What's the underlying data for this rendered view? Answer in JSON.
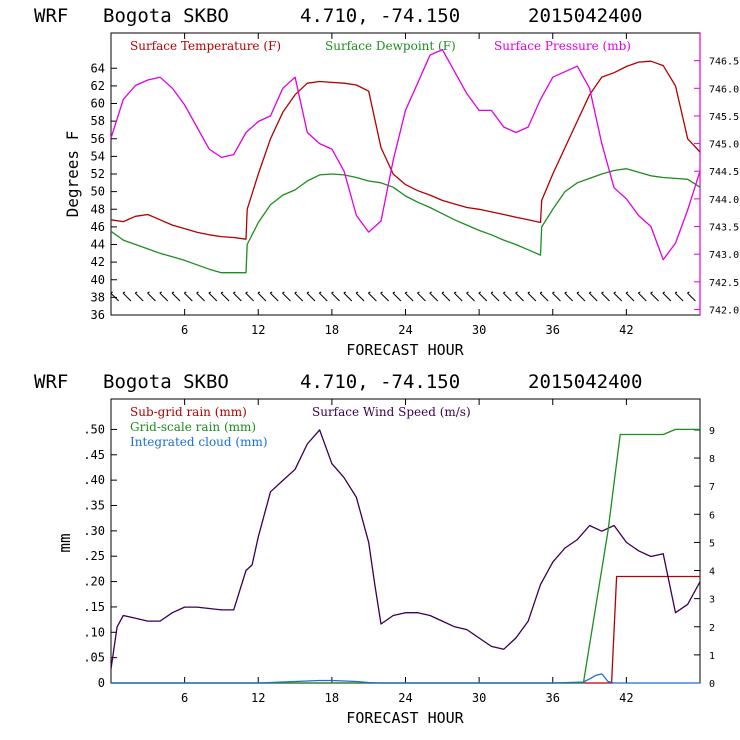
{
  "top_panel": {
    "header": {
      "model": "WRF",
      "station": "Bogota SKBO",
      "coords": "4.710, -74.150",
      "run": "2015042400"
    },
    "xlabel": "FORECAST HOUR",
    "ylabel": "Degrees F",
    "legend": [
      {
        "label": "Surface Temperature (F)",
        "color": "#b30000"
      },
      {
        "label": "Surface Dewpoint (F)",
        "color": "#1e8c1e"
      },
      {
        "label": "Surface Pressure (mb)",
        "color": "#e000e0"
      }
    ]
  },
  "bottom_panel": {
    "header": {
      "model": "WRF",
      "station": "Bogota SKBO",
      "coords": "4.710, -74.150",
      "run": "2015042400"
    },
    "xlabel": "FORECAST HOUR",
    "ylabel": "mm",
    "legend": [
      {
        "label": "Sub-grid rain (mm)",
        "color": "#b30000"
      },
      {
        "label": "Surface Wind Speed (m/s)",
        "color": "#3a0050"
      },
      {
        "label": "Grid-scale rain (mm)",
        "color": "#1e8c1e"
      },
      {
        "label": "Integrated cloud (mm)",
        "color": "#1a6ed8"
      }
    ]
  },
  "chart_data": [
    {
      "type": "line",
      "xlim": [
        0,
        48
      ],
      "xticks": [
        6,
        12,
        18,
        24,
        30,
        36,
        42
      ],
      "ylim": [
        36,
        68
      ],
      "yticks": [
        36,
        38,
        40,
        42,
        44,
        46,
        48,
        50,
        52,
        54,
        56,
        58,
        60,
        62,
        64
      ],
      "y2lim": [
        741.9,
        747.0
      ],
      "y2ticks": [
        "742.0",
        "742.5",
        "743.0",
        "743.5",
        "744.0",
        "744.5",
        "745.0",
        "745.5",
        "746.0",
        "746.5"
      ],
      "series": [
        {
          "name": "Surface Temperature (F)",
          "axis": "left",
          "color": "#b30000",
          "x": [
            0,
            1,
            2,
            3,
            4,
            5,
            6,
            7,
            8,
            9,
            10,
            11,
            11.1,
            12,
            13,
            14,
            15,
            16,
            17,
            18,
            19,
            20,
            21,
            22,
            23,
            24,
            25,
            26,
            27,
            28,
            29,
            30,
            31,
            32,
            33,
            34,
            35,
            35.1,
            36,
            37,
            38,
            39,
            40,
            41,
            42,
            43,
            44,
            45,
            46,
            47,
            48
          ],
          "y": [
            46.8,
            46.6,
            47.2,
            47.4,
            46.8,
            46.2,
            45.8,
            45.4,
            45.1,
            44.9,
            44.8,
            44.6,
            48,
            52,
            56,
            59,
            61,
            62.3,
            62.5,
            62.4,
            62.3,
            62.1,
            61.4,
            55,
            52,
            50.8,
            50.1,
            49.6,
            49,
            48.6,
            48.2,
            48,
            47.7,
            47.4,
            47.1,
            46.8,
            46.5,
            49,
            52,
            55,
            58,
            61,
            63,
            63.5,
            64.2,
            64.7,
            64.8,
            64.3,
            62,
            56,
            54.5
          ]
        },
        {
          "name": "Surface Dewpoint (F)",
          "axis": "left",
          "color": "#1e8c1e",
          "x": [
            0,
            1,
            2,
            3,
            4,
            5,
            6,
            7,
            8,
            9,
            10,
            11,
            11.1,
            12,
            13,
            14,
            15,
            16,
            17,
            18,
            19,
            20,
            21,
            22,
            23,
            24,
            25,
            26,
            27,
            28,
            29,
            30,
            31,
            32,
            33,
            34,
            35,
            35.1,
            36,
            37,
            38,
            39,
            40,
            41,
            42,
            43,
            44,
            45,
            46,
            47,
            48
          ],
          "y": [
            45.5,
            44.5,
            44,
            43.5,
            43,
            42.6,
            42.2,
            41.7,
            41.2,
            40.8,
            40.8,
            40.8,
            44,
            46.5,
            48.5,
            49.6,
            50.2,
            51.2,
            51.9,
            52,
            51.9,
            51.6,
            51.2,
            51,
            50.5,
            49.5,
            48.8,
            48.2,
            47.5,
            46.8,
            46.2,
            45.6,
            45.1,
            44.5,
            44,
            43.4,
            42.8,
            46,
            48,
            50,
            51,
            51.5,
            52,
            52.4,
            52.6,
            52.2,
            51.8,
            51.6,
            51.5,
            51.4,
            50.5
          ]
        },
        {
          "name": "Surface Pressure (mb)",
          "axis": "right",
          "color": "#e000e0",
          "x": [
            0,
            1,
            2,
            3,
            4,
            5,
            6,
            7,
            8,
            9,
            10,
            11,
            12,
            13,
            14,
            15,
            16,
            17,
            18,
            19,
            20,
            21,
            22,
            23,
            24,
            25,
            26,
            27,
            28,
            29,
            30,
            31,
            32,
            33,
            34,
            35,
            36,
            37,
            38,
            39,
            40,
            41,
            42,
            43,
            44,
            45,
            46,
            47,
            48
          ],
          "y": [
            745.1,
            745.8,
            746.05,
            746.15,
            746.2,
            746.0,
            745.7,
            745.3,
            744.9,
            744.75,
            744.8,
            745.2,
            745.4,
            745.5,
            746.0,
            746.2,
            745.2,
            745.0,
            744.9,
            744.5,
            743.7,
            743.4,
            743.6,
            744.7,
            745.6,
            746.1,
            746.6,
            746.7,
            746.3,
            745.9,
            745.6,
            745.6,
            745.3,
            745.2,
            745.3,
            745.8,
            746.2,
            746.3,
            746.4,
            746.0,
            745.0,
            744.2,
            744.0,
            743.7,
            743.5,
            742.9,
            743.2,
            743.8,
            744.5
          ]
        }
      ],
      "wind_barbs": true,
      "grid": false
    },
    {
      "type": "line",
      "xlim": [
        0,
        48
      ],
      "xticks": [
        6,
        12,
        18,
        24,
        30,
        36,
        42
      ],
      "ylim": [
        0,
        0.56
      ],
      "yticks": [
        "0",
        ".05",
        ".10",
        ".15",
        ".20",
        ".25",
        ".30",
        ".35",
        ".40",
        ".45",
        ".50"
      ],
      "y2lim": [
        0,
        10.1
      ],
      "y2ticks": [
        "0",
        "1",
        "2",
        "3",
        "4",
        "5",
        "6",
        "7",
        "8",
        "9"
      ],
      "series": [
        {
          "name": "Sub-grid rain (mm)",
          "axis": "left",
          "color": "#b30000",
          "x": [
            0,
            40.8,
            41.2,
            48
          ],
          "y": [
            0,
            0,
            0.21,
            0.21
          ]
        },
        {
          "name": "Surface Wind Speed (m/s)",
          "axis": "right",
          "color": "#3a0050",
          "x": [
            0,
            0.5,
            1,
            2,
            3,
            4,
            5,
            6,
            7,
            8,
            9,
            10,
            11,
            11.5,
            12,
            13,
            14,
            15,
            16,
            17,
            18,
            19,
            20,
            21,
            21.5,
            22,
            23,
            24,
            25,
            26,
            27,
            28,
            29,
            30,
            31,
            32,
            33,
            34,
            35,
            36,
            37,
            38,
            39,
            40,
            41,
            42,
            43,
            44,
            45,
            46,
            47,
            48
          ],
          "y": [
            0.5,
            2,
            2.4,
            2.3,
            2.2,
            2.2,
            2.5,
            2.7,
            2.7,
            2.65,
            2.6,
            2.6,
            4,
            4.2,
            5.2,
            6.8,
            7.2,
            7.6,
            8.5,
            9.0,
            7.8,
            7.3,
            6.6,
            5.0,
            3.5,
            2.1,
            2.4,
            2.5,
            2.5,
            2.4,
            2.2,
            2.0,
            1.9,
            1.6,
            1.3,
            1.2,
            1.6,
            2.2,
            3.5,
            4.3,
            4.8,
            5.1,
            5.6,
            5.4,
            5.6,
            5.0,
            4.7,
            4.5,
            4.6,
            2.5,
            2.8,
            3.6
          ]
        },
        {
          "name": "Grid-scale rain (mm)",
          "axis": "left",
          "color": "#1e8c1e",
          "x": [
            0,
            38.5,
            40.5,
            41.5,
            45,
            46,
            48
          ],
          "y": [
            0,
            0,
            0.3,
            0.49,
            0.49,
            0.5,
            0.5
          ]
        },
        {
          "name": "Integrated cloud (mm)",
          "axis": "left",
          "color": "#1a6ed8",
          "x": [
            0,
            12,
            14,
            16,
            17,
            18,
            19,
            20,
            21,
            22,
            30,
            36,
            38.5,
            39,
            39.5,
            40,
            40.5,
            41,
            48
          ],
          "y": [
            0,
            0,
            0.002,
            0.004,
            0.005,
            0.005,
            0.004,
            0.003,
            0.001,
            0,
            0,
            0,
            0.002,
            0.008,
            0.015,
            0.018,
            0.003,
            0,
            0
          ]
        }
      ],
      "grid": false
    }
  ]
}
